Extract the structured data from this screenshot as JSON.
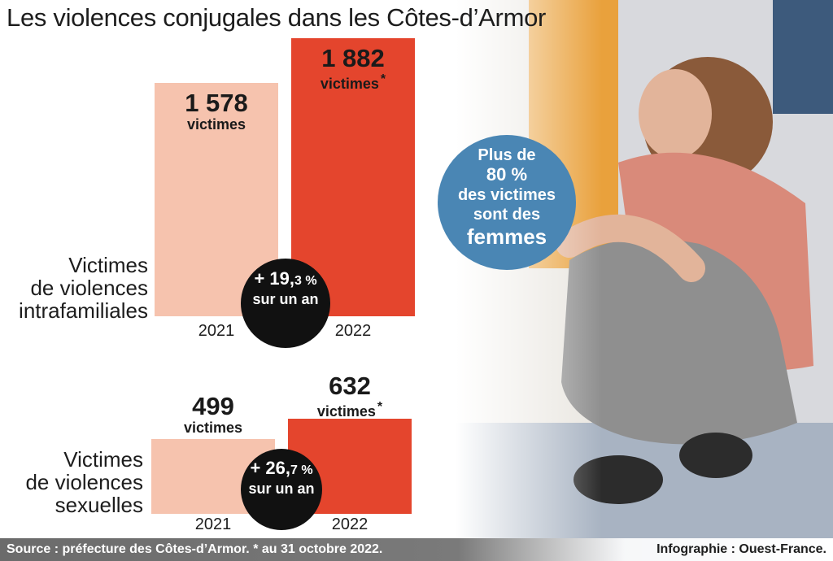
{
  "title": "Les violences conjugales dans les Côtes-d’Armor",
  "colors": {
    "light_bar": "#f6c3ae",
    "dark_bar": "#e4452d",
    "badge": "#111111",
    "bubble": "#4a86b4"
  },
  "bubble": {
    "line1": "Plus de",
    "line2": "80 %",
    "line3": "des victimes",
    "line4": "sont des",
    "line5": "femmes"
  },
  "chart_data": [
    {
      "type": "bar",
      "series_label": [
        "Victimes",
        "de violences",
        "intrafamiliales"
      ],
      "categories": [
        "2021",
        "2022"
      ],
      "values": [
        1578,
        1882
      ],
      "value_labels": [
        "1 578",
        "1 882"
      ],
      "unit_labels": [
        "victimes",
        "victimes"
      ],
      "asterisk": [
        false,
        true
      ],
      "change_pct": "+ 19,3 %",
      "change_int": "+ 19,",
      "change_dec": "3 %",
      "change_sub": "sur un an"
    },
    {
      "type": "bar",
      "series_label": [
        "Victimes",
        "de violences",
        "sexuelles"
      ],
      "categories": [
        "2021",
        "2022"
      ],
      "values": [
        499,
        632
      ],
      "value_labels": [
        "499",
        "632"
      ],
      "unit_labels": [
        "victimes",
        "victimes"
      ],
      "asterisk": [
        false,
        true
      ],
      "change_pct": "+ 26,7 %",
      "change_int": "+ 26,",
      "change_dec": "7 %",
      "change_sub": "sur un an"
    }
  ],
  "footer": {
    "source": "Source : préfecture des Côtes-d’Armor. * au 31 octobre 2022.",
    "credit": "Infographie : Ouest-France."
  }
}
